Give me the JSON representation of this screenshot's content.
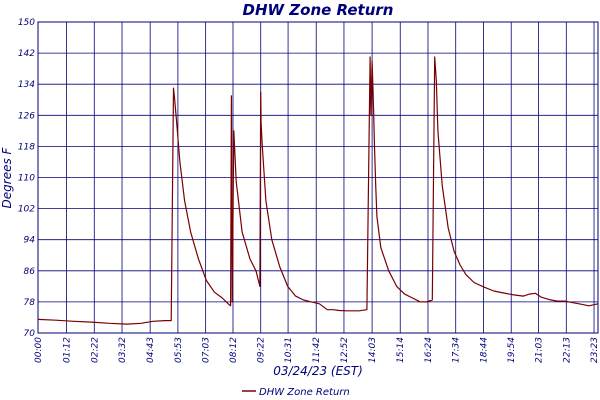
{
  "chart_data": {
    "type": "line",
    "title": "DHW Zone Return",
    "xlabel": "03/24/23 (EST)",
    "ylabel": "Degrees F",
    "ylim": [
      70,
      150
    ],
    "yticks": [
      70,
      78,
      86,
      94,
      102,
      110,
      118,
      126,
      134,
      142,
      150
    ],
    "xlim": [
      "00:00",
      "23:33"
    ],
    "xticks": [
      "00:00",
      "01:12",
      "02:22",
      "03:32",
      "04:43",
      "05:53",
      "07:03",
      "08:12",
      "09:22",
      "10:31",
      "11:42",
      "12:52",
      "14:03",
      "15:14",
      "16:24",
      "17:34",
      "18:44",
      "19:54",
      "21:03",
      "22:13",
      "23:23"
    ],
    "grid": true,
    "colors": {
      "line": "#7a0000",
      "grid": "#00007a",
      "text": "#00007a"
    },
    "legend_position": "bottom-center",
    "series": [
      {
        "name": "DHW Zone Return",
        "x": [
          "00:00",
          "00:45",
          "01:30",
          "02:15",
          "03:00",
          "03:45",
          "04:20",
          "04:50",
          "05:20",
          "05:36",
          "05:42",
          "05:45",
          "05:50",
          "05:58",
          "06:10",
          "06:25",
          "06:45",
          "07:05",
          "07:25",
          "07:45",
          "08:00",
          "08:06",
          "08:08",
          "08:10",
          "08:14",
          "08:20",
          "08:35",
          "08:55",
          "09:10",
          "09:20",
          "09:22",
          "09:23",
          "09:26",
          "09:35",
          "09:50",
          "10:10",
          "10:30",
          "10:50",
          "11:10",
          "11:30",
          "11:50",
          "12:10",
          "12:25",
          "12:40",
          "13:00",
          "13:30",
          "13:50",
          "13:58",
          "14:00",
          "14:03",
          "14:06",
          "14:09",
          "14:12",
          "14:15",
          "14:25",
          "14:45",
          "15:05",
          "15:25",
          "15:45",
          "16:05",
          "16:20",
          "16:35",
          "16:41",
          "16:45",
          "16:49",
          "17:00",
          "17:15",
          "17:30",
          "17:45",
          "18:00",
          "18:20",
          "18:45",
          "19:10",
          "19:35",
          "20:00",
          "20:25",
          "20:40",
          "20:55",
          "21:10",
          "21:30",
          "21:50",
          "22:10",
          "22:30",
          "22:50",
          "23:10",
          "23:33"
        ],
        "values": [
          73.5,
          73.3,
          73,
          72.8,
          72.5,
          72.3,
          72.5,
          73,
          73.2,
          73.2,
          133,
          130,
          124,
          114,
          104,
          96,
          89,
          83.5,
          80.5,
          79,
          77.5,
          77,
          131,
          78,
          122,
          109,
          96,
          89,
          86,
          82,
          132,
          124,
          118,
          104,
          94,
          87,
          82,
          79.5,
          78.5,
          78,
          77.5,
          76,
          76,
          75.8,
          75.7,
          75.7,
          76,
          141,
          126,
          140,
          130,
          118,
          108,
          100,
          92,
          86,
          82,
          80,
          79,
          78,
          78,
          78.5,
          141,
          135,
          122,
          108,
          97,
          91,
          87.5,
          85,
          83,
          81.8,
          80.8,
          80.3,
          79.8,
          79.5,
          80,
          80.2,
          79.2,
          78.6,
          78.2,
          78.2,
          77.8,
          77.4,
          77,
          77.5
        ]
      }
    ]
  }
}
